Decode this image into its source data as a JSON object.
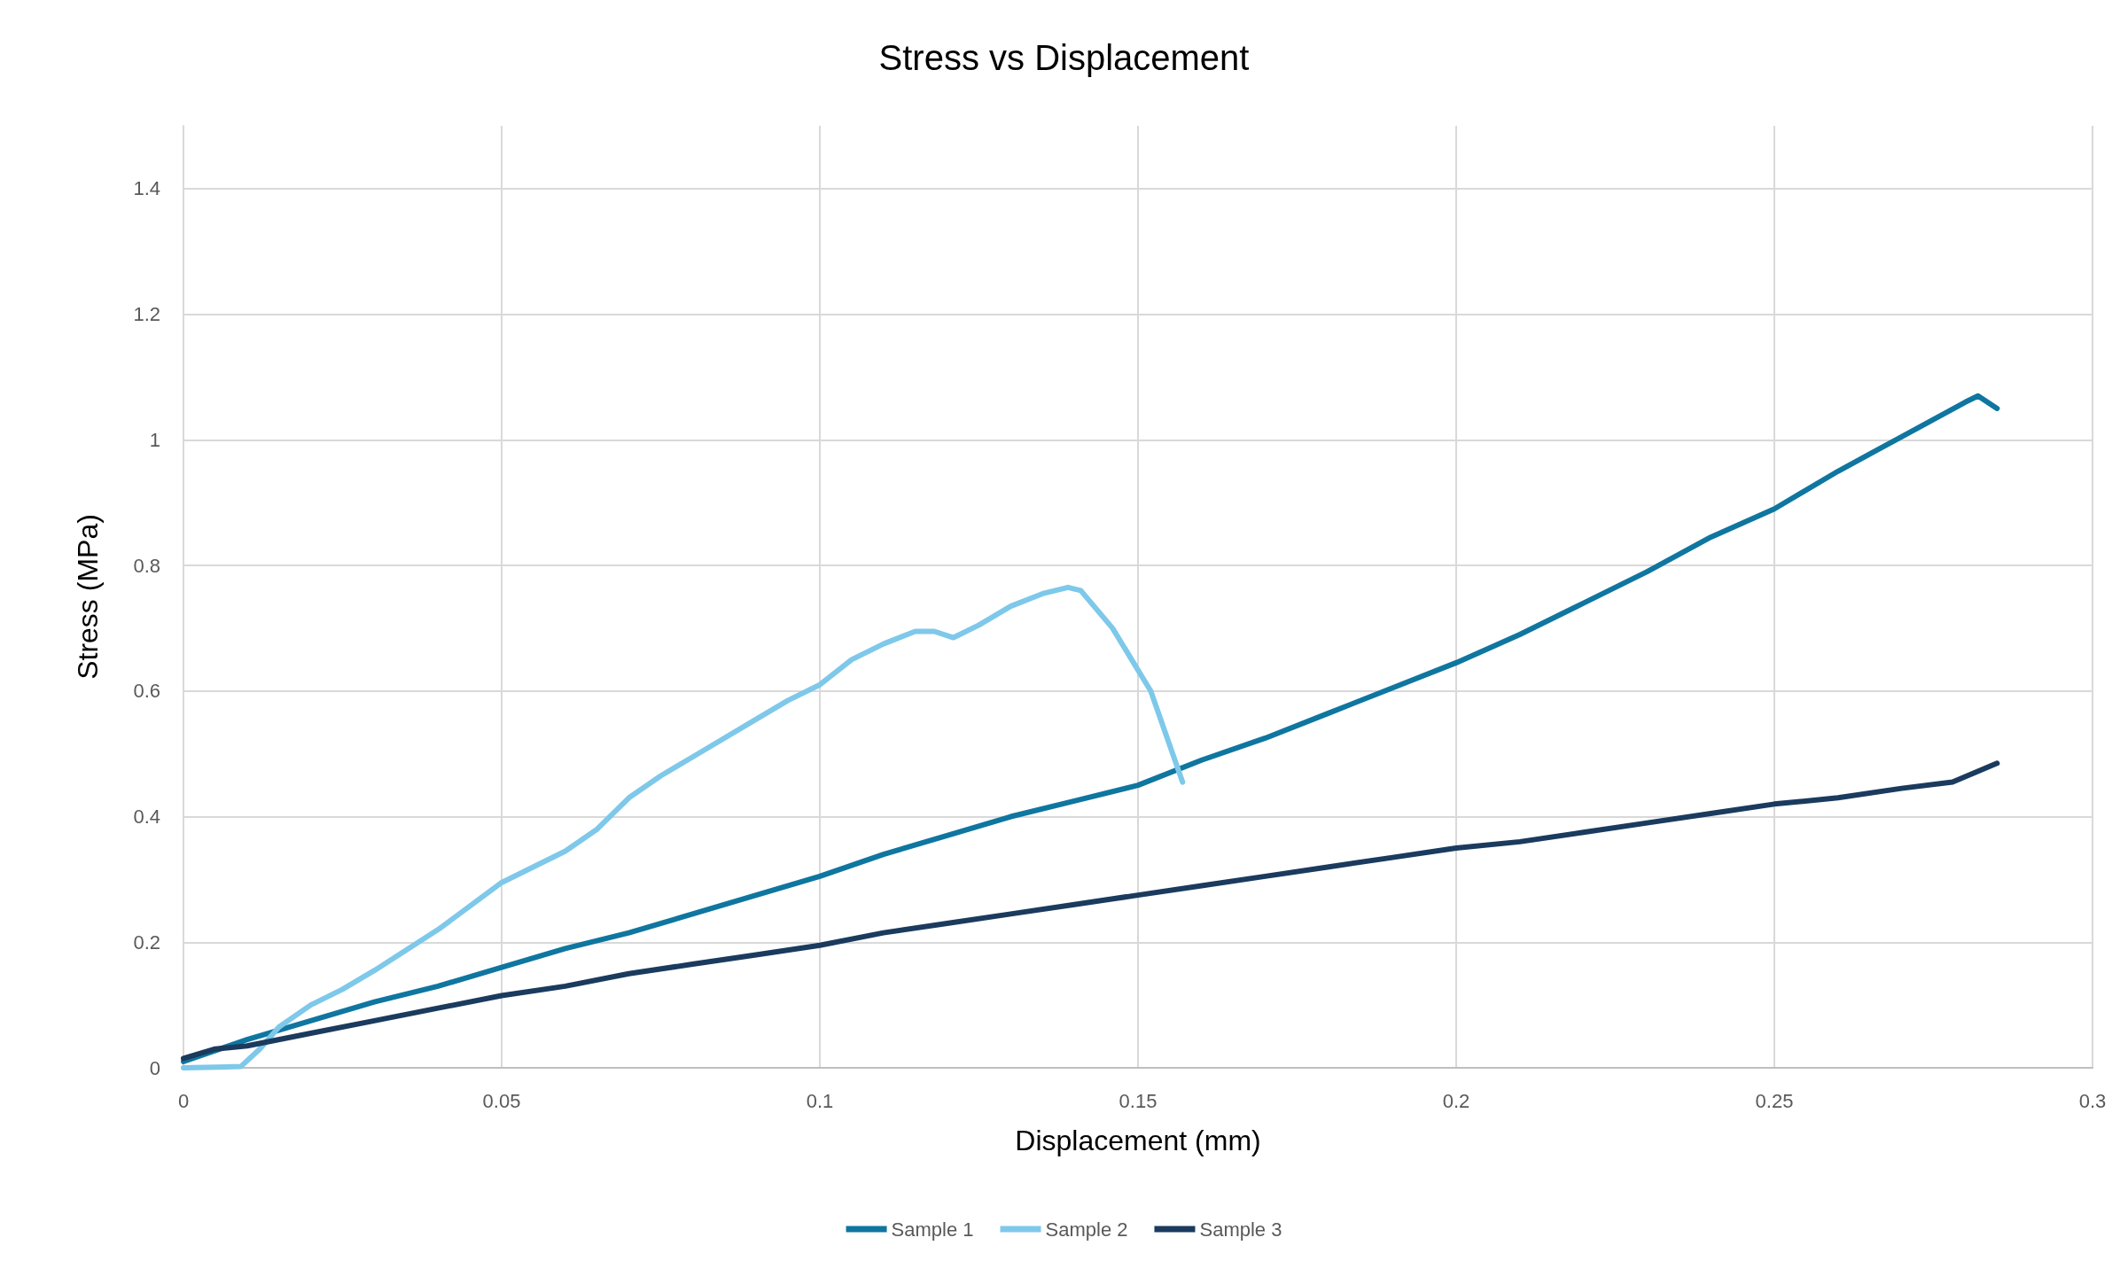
{
  "chart_data": {
    "type": "line",
    "title": "Stress vs Displacement",
    "xlabel": "Displacement (mm)",
    "ylabel": "Stress (MPa)",
    "xlim": [
      0,
      0.3
    ],
    "xticks": [
      0,
      0.05,
      0.1,
      0.15,
      0.2,
      0.25,
      0.3
    ],
    "ylim": [
      0,
      1.5
    ],
    "yticks": [
      0,
      0.2,
      0.4,
      0.6,
      0.8,
      1,
      1.2,
      1.4
    ],
    "grid": true,
    "legend": "bottom",
    "marker": "none",
    "line_style": "solid",
    "series": [
      {
        "name": "Sample 1",
        "color": "#0f76a0",
        "x": [
          0,
          0.01,
          0.02,
          0.03,
          0.04,
          0.05,
          0.06,
          0.07,
          0.08,
          0.09,
          0.1,
          0.11,
          0.12,
          0.13,
          0.14,
          0.15,
          0.16,
          0.17,
          0.18,
          0.19,
          0.2,
          0.21,
          0.22,
          0.23,
          0.24,
          0.25,
          0.26,
          0.27,
          0.28,
          0.282,
          0.285
        ],
        "values": [
          0.01,
          0.045,
          0.075,
          0.105,
          0.13,
          0.16,
          0.19,
          0.215,
          0.245,
          0.275,
          0.305,
          0.34,
          0.37,
          0.4,
          0.425,
          0.45,
          0.49,
          0.525,
          0.565,
          0.605,
          0.645,
          0.69,
          0.74,
          0.79,
          0.845,
          0.89,
          0.95,
          1.005,
          1.06,
          1.07,
          1.05
        ]
      },
      {
        "name": "Sample 2",
        "color": "#7ec8ea",
        "x": [
          0,
          0.009,
          0.012,
          0.015,
          0.02,
          0.025,
          0.03,
          0.04,
          0.05,
          0.06,
          0.065,
          0.07,
          0.075,
          0.08,
          0.09,
          0.095,
          0.1,
          0.105,
          0.11,
          0.115,
          0.118,
          0.121,
          0.125,
          0.13,
          0.135,
          0.139,
          0.141,
          0.146,
          0.152,
          0.157
        ],
        "values": [
          0,
          0.002,
          0.03,
          0.065,
          0.1,
          0.125,
          0.155,
          0.22,
          0.295,
          0.345,
          0.38,
          0.43,
          0.465,
          0.495,
          0.555,
          0.585,
          0.61,
          0.65,
          0.675,
          0.695,
          0.695,
          0.685,
          0.705,
          0.735,
          0.755,
          0.765,
          0.76,
          0.7,
          0.6,
          0.455
        ]
      },
      {
        "name": "Sample 3",
        "color": "#1a3b5e",
        "x": [
          0,
          0.005,
          0.01,
          0.02,
          0.03,
          0.04,
          0.05,
          0.06,
          0.07,
          0.08,
          0.09,
          0.1,
          0.11,
          0.12,
          0.13,
          0.14,
          0.15,
          0.16,
          0.17,
          0.18,
          0.19,
          0.2,
          0.21,
          0.22,
          0.23,
          0.24,
          0.25,
          0.26,
          0.27,
          0.278,
          0.285
        ],
        "values": [
          0.015,
          0.03,
          0.035,
          0.055,
          0.075,
          0.095,
          0.115,
          0.13,
          0.15,
          0.165,
          0.18,
          0.195,
          0.215,
          0.23,
          0.245,
          0.26,
          0.275,
          0.29,
          0.305,
          0.32,
          0.335,
          0.35,
          0.36,
          0.375,
          0.39,
          0.405,
          0.42,
          0.43,
          0.445,
          0.455,
          0.485
        ]
      }
    ]
  }
}
